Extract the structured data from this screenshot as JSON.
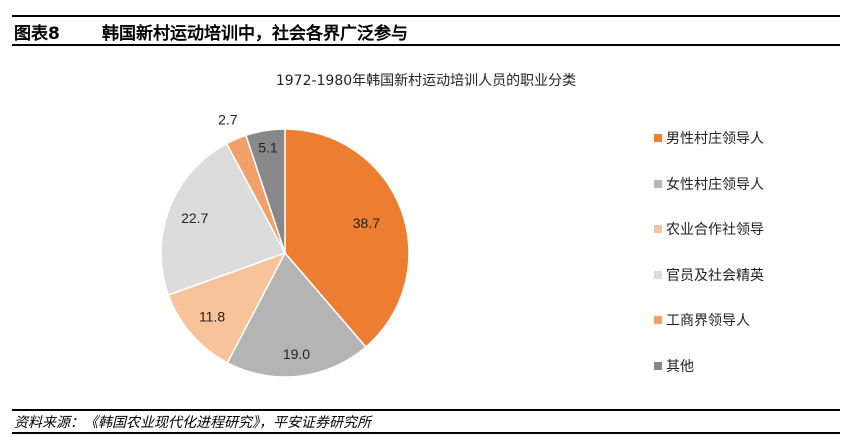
{
  "figure": {
    "number": "图表8",
    "title": "韩国新村运动培训中，社会各界广泛参与"
  },
  "source": "资料来源：《韩国农业现代化进程研究》，平安证券研究所",
  "chart_data": {
    "type": "pie",
    "title": "1972-1980年韩国新村运动培训人员的职业分类",
    "categories": [
      "男性村庄领导人",
      "女性村庄领导人",
      "农业合作社领导",
      "官员及社会精英",
      "工商界领导人",
      "其他"
    ],
    "values": [
      38.7,
      19.0,
      11.8,
      22.7,
      2.7,
      5.1
    ],
    "labels": [
      "38.7",
      "19.0",
      "11.8",
      "22.7",
      "2.7",
      "5.1"
    ],
    "colors": [
      "#ED7D31",
      "#B4B4B4",
      "#F8C29A",
      "#DCDCDC",
      "#F0A068",
      "#888888"
    ],
    "start_angle": "12 o'clock, clockwise",
    "legend_position": "right"
  },
  "legend": [
    {
      "label": "男性村庄领导人",
      "color": "#ED7D31"
    },
    {
      "label": "女性村庄领导人",
      "color": "#B4B4B4"
    },
    {
      "label": "农业合作社领导",
      "color": "#F8C29A"
    },
    {
      "label": "官员及社会精英",
      "color": "#DCDCDC"
    },
    {
      "label": "工商界领导人",
      "color": "#F0A068"
    },
    {
      "label": "其他",
      "color": "#888888"
    }
  ]
}
